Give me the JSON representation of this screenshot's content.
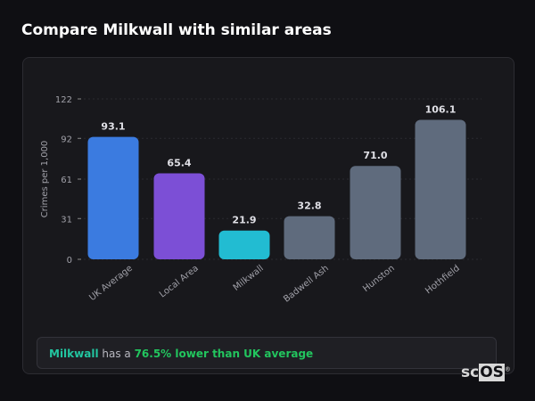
{
  "title": "Compare Milkwall with similar areas",
  "chart_data": {
    "type": "bar",
    "categories": [
      "UK Average",
      "Local Area",
      "Milkwall",
      "Badwell Ash",
      "Hunston",
      "Hothfield"
    ],
    "values": [
      93.1,
      65.4,
      21.9,
      32.8,
      71.0,
      106.1
    ],
    "labels": [
      "93.1",
      "65.4",
      "21.9",
      "32.8",
      "71.0",
      "106.1"
    ],
    "colors": [
      "#3b7be0",
      "#7c4fd6",
      "#22bcd2",
      "#5f6b7d",
      "#5f6b7d",
      "#5f6b7d"
    ],
    "ylabel": "Crimes per 1,000",
    "yticks": [
      0,
      31,
      61,
      92,
      122
    ],
    "ylim": [
      0,
      122
    ],
    "grid": true
  },
  "summary": {
    "area": "Milkwall",
    "mid": " has a ",
    "result": "76.5% lower than UK average"
  },
  "logo": {
    "a": "sc",
    "b": "OS",
    "mark": "®"
  }
}
